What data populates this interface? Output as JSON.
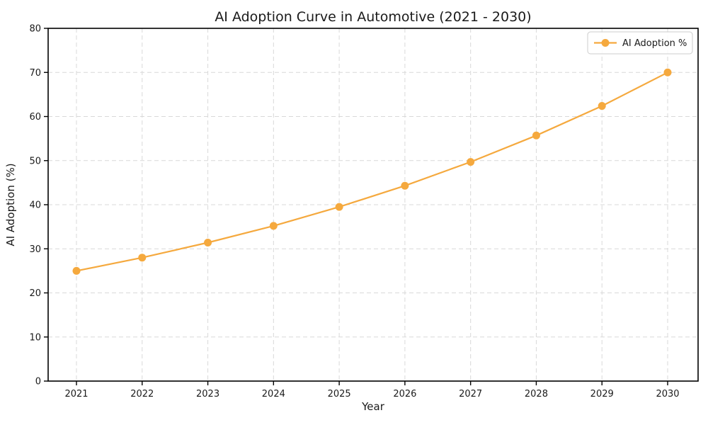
{
  "chart_data": {
    "type": "line",
    "title": "AI Adoption Curve in Automotive (2021 - 2030)",
    "xlabel": "Year",
    "ylabel": "AI Adoption (%)",
    "categories": [
      "2021",
      "2022",
      "2023",
      "2024",
      "2025",
      "2026",
      "2027",
      "2028",
      "2029",
      "2030"
    ],
    "series": [
      {
        "name": "AI Adoption %",
        "values": [
          25.0,
          28.0,
          31.4,
          35.2,
          39.5,
          44.3,
          49.7,
          55.7,
          62.4,
          70.0
        ],
        "color": "#F5A93E",
        "marker": "circle"
      }
    ],
    "ylim": [
      0,
      80
    ],
    "yticks": [
      0,
      10,
      20,
      30,
      40,
      50,
      60,
      70,
      80
    ],
    "grid": true,
    "grid_style": "dashed",
    "legend": {
      "position": "upper-right",
      "labels": [
        "AI Adoption %"
      ]
    }
  },
  "colors": {
    "accent": "#F5A93E",
    "grid": "#d9d9d9",
    "axis": "#000000",
    "text": "#1a1a1a",
    "legend_border": "#cccccc",
    "legend_bg": "rgba(255,255,255,0.85)",
    "background": "#ffffff"
  }
}
